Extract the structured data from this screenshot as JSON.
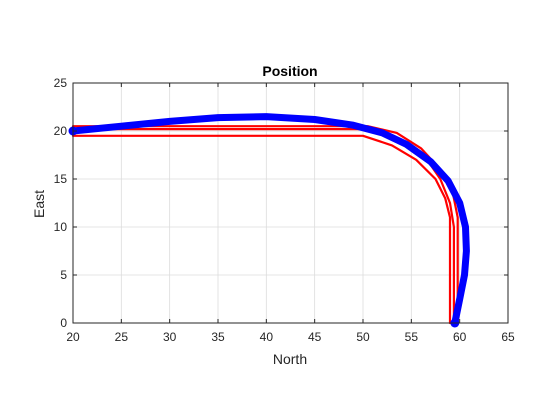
{
  "chart_data": {
    "type": "line",
    "title": "Position",
    "xlabel": "North",
    "ylabel": "East",
    "xlim": [
      20,
      65
    ],
    "ylim": [
      0,
      25
    ],
    "xticks": [
      20,
      25,
      30,
      35,
      40,
      45,
      50,
      55,
      60,
      65
    ],
    "yticks": [
      0,
      5,
      10,
      15,
      20,
      25
    ],
    "grid": true,
    "series": [
      {
        "color": "#ff0000",
        "style": "thin",
        "points": [
          [
            59.4,
            0
          ],
          [
            59.4,
            10
          ],
          [
            59.0,
            12.5
          ],
          [
            58.0,
            15.0
          ],
          [
            56.5,
            17.2
          ],
          [
            54.0,
            19.0
          ],
          [
            51.0,
            20.0
          ],
          [
            50.0,
            20.2
          ],
          [
            20,
            20.2
          ]
        ]
      },
      {
        "color": "#ff0000",
        "style": "thin",
        "points": [
          [
            20,
            20.5
          ],
          [
            50.5,
            20.5
          ],
          [
            53.5,
            19.8
          ],
          [
            56.0,
            18.2
          ],
          [
            58.0,
            16.0
          ],
          [
            59.3,
            13.5
          ],
          [
            59.8,
            11.0
          ],
          [
            59.8,
            0
          ]
        ]
      },
      {
        "color": "#ff0000",
        "style": "thin",
        "points": [
          [
            59.0,
            0
          ],
          [
            59.0,
            11.0
          ],
          [
            58.5,
            13.0
          ],
          [
            57.5,
            15.0
          ],
          [
            55.5,
            17.0
          ],
          [
            53.0,
            18.5
          ],
          [
            50.0,
            19.5
          ],
          [
            20,
            19.5
          ]
        ]
      },
      {
        "color": "#0000ff",
        "style": "thick",
        "points": [
          [
            59.5,
            0
          ],
          [
            60.0,
            2.5
          ],
          [
            60.5,
            5.0
          ],
          [
            60.7,
            7.5
          ],
          [
            60.6,
            10.0
          ],
          [
            60.0,
            12.5
          ],
          [
            58.8,
            14.8
          ],
          [
            57.0,
            16.8
          ],
          [
            54.5,
            18.6
          ],
          [
            52.0,
            19.8
          ],
          [
            49.0,
            20.6
          ],
          [
            45.0,
            21.2
          ],
          [
            40.0,
            21.5
          ],
          [
            35.0,
            21.4
          ],
          [
            30.0,
            21.0
          ],
          [
            25.0,
            20.5
          ],
          [
            20.0,
            20.0
          ]
        ]
      }
    ],
    "markers": [
      {
        "x": 20,
        "y": 20,
        "color": "#0000ff"
      },
      {
        "x": 59.5,
        "y": 0,
        "color": "#0000ff"
      }
    ]
  }
}
